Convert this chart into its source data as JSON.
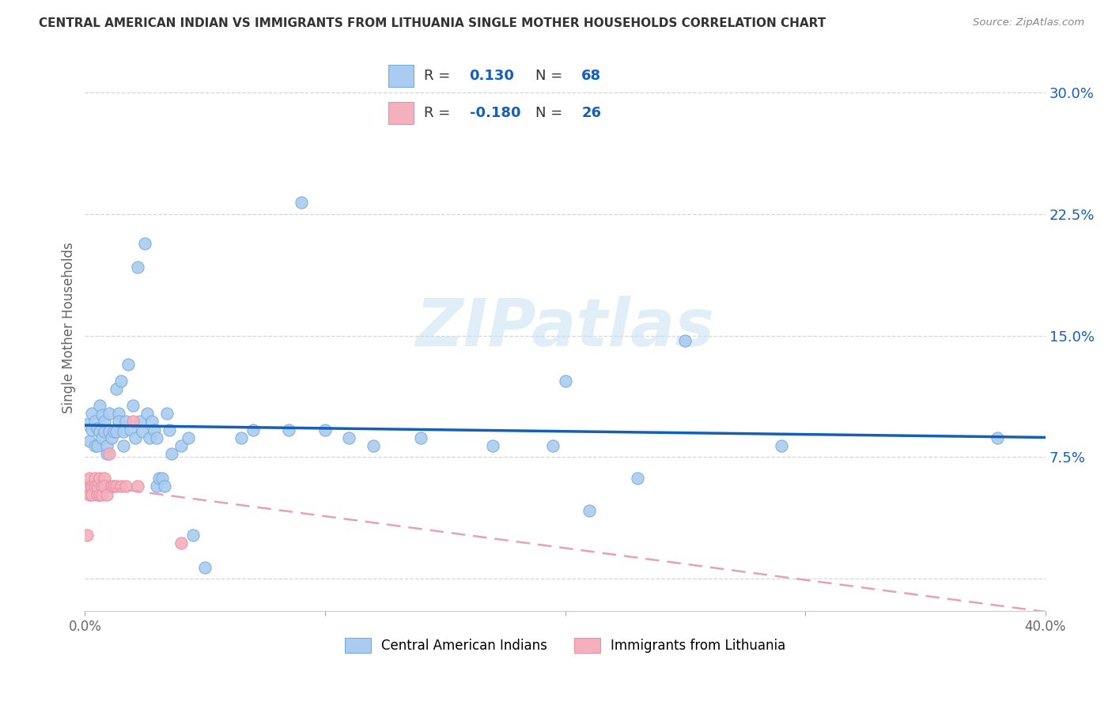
{
  "title": "CENTRAL AMERICAN INDIAN VS IMMIGRANTS FROM LITHUANIA SINGLE MOTHER HOUSEHOLDS CORRELATION CHART",
  "source": "Source: ZipAtlas.com",
  "ylabel": "Single Mother Households",
  "yticks": [
    0.0,
    0.075,
    0.15,
    0.225,
    0.3
  ],
  "ytick_labels": [
    "",
    "7.5%",
    "15.0%",
    "22.5%",
    "30.0%"
  ],
  "xtick_labels": [
    "0.0%",
    "",
    "",
    "",
    "40.0%"
  ],
  "xlim": [
    0.0,
    0.4
  ],
  "ylim": [
    -0.02,
    0.33
  ],
  "r_blue": 0.13,
  "n_blue": 68,
  "r_pink": -0.18,
  "n_pink": 26,
  "legend_label_blue": "Central American Indians",
  "legend_label_pink": "Immigrants from Lithuania",
  "watermark": "ZIPatlas",
  "scatter_blue": [
    [
      0.001,
      0.095
    ],
    [
      0.002,
      0.085
    ],
    [
      0.003,
      0.092
    ],
    [
      0.003,
      0.102
    ],
    [
      0.004,
      0.082
    ],
    [
      0.004,
      0.097
    ],
    [
      0.005,
      0.082
    ],
    [
      0.005,
      0.093
    ],
    [
      0.006,
      0.107
    ],
    [
      0.006,
      0.091
    ],
    [
      0.007,
      0.101
    ],
    [
      0.007,
      0.087
    ],
    [
      0.008,
      0.091
    ],
    [
      0.008,
      0.097
    ],
    [
      0.009,
      0.077
    ],
    [
      0.009,
      0.082
    ],
    [
      0.01,
      0.091
    ],
    [
      0.01,
      0.102
    ],
    [
      0.011,
      0.087
    ],
    [
      0.012,
      0.091
    ],
    [
      0.013,
      0.117
    ],
    [
      0.013,
      0.091
    ],
    [
      0.014,
      0.102
    ],
    [
      0.014,
      0.097
    ],
    [
      0.015,
      0.122
    ],
    [
      0.016,
      0.091
    ],
    [
      0.016,
      0.082
    ],
    [
      0.017,
      0.097
    ],
    [
      0.018,
      0.132
    ],
    [
      0.019,
      0.092
    ],
    [
      0.02,
      0.107
    ],
    [
      0.021,
      0.087
    ],
    [
      0.022,
      0.192
    ],
    [
      0.023,
      0.097
    ],
    [
      0.024,
      0.091
    ],
    [
      0.025,
      0.207
    ],
    [
      0.026,
      0.102
    ],
    [
      0.027,
      0.087
    ],
    [
      0.028,
      0.097
    ],
    [
      0.029,
      0.092
    ],
    [
      0.03,
      0.087
    ],
    [
      0.03,
      0.057
    ],
    [
      0.031,
      0.062
    ],
    [
      0.032,
      0.062
    ],
    [
      0.033,
      0.057
    ],
    [
      0.034,
      0.102
    ],
    [
      0.035,
      0.092
    ],
    [
      0.036,
      0.077
    ],
    [
      0.04,
      0.082
    ],
    [
      0.043,
      0.087
    ],
    [
      0.045,
      0.027
    ],
    [
      0.05,
      0.007
    ],
    [
      0.065,
      0.087
    ],
    [
      0.07,
      0.092
    ],
    [
      0.085,
      0.092
    ],
    [
      0.09,
      0.232
    ],
    [
      0.1,
      0.092
    ],
    [
      0.11,
      0.087
    ],
    [
      0.12,
      0.082
    ],
    [
      0.14,
      0.087
    ],
    [
      0.17,
      0.082
    ],
    [
      0.195,
      0.082
    ],
    [
      0.2,
      0.122
    ],
    [
      0.21,
      0.042
    ],
    [
      0.23,
      0.062
    ],
    [
      0.25,
      0.147
    ],
    [
      0.29,
      0.082
    ],
    [
      0.38,
      0.087
    ]
  ],
  "scatter_pink": [
    [
      0.001,
      0.057
    ],
    [
      0.002,
      0.052
    ],
    [
      0.002,
      0.062
    ],
    [
      0.003,
      0.057
    ],
    [
      0.003,
      0.052
    ],
    [
      0.004,
      0.062
    ],
    [
      0.004,
      0.057
    ],
    [
      0.005,
      0.052
    ],
    [
      0.005,
      0.057
    ],
    [
      0.006,
      0.062
    ],
    [
      0.006,
      0.052
    ],
    [
      0.007,
      0.057
    ],
    [
      0.007,
      0.052
    ],
    [
      0.008,
      0.062
    ],
    [
      0.008,
      0.057
    ],
    [
      0.009,
      0.052
    ],
    [
      0.01,
      0.077
    ],
    [
      0.011,
      0.057
    ],
    [
      0.012,
      0.057
    ],
    [
      0.013,
      0.057
    ],
    [
      0.015,
      0.057
    ],
    [
      0.017,
      0.057
    ],
    [
      0.02,
      0.097
    ],
    [
      0.022,
      0.057
    ],
    [
      0.04,
      0.022
    ],
    [
      0.001,
      0.027
    ]
  ],
  "dot_size": 120,
  "blue_color": "#aaccf0",
  "pink_color": "#f5b0be",
  "blue_scatter_edge": "#7aacde",
  "pink_scatter_edge": "#e890a0",
  "blue_line_color": "#1460b8",
  "pink_line_color": "#e8a0b8",
  "text_color": "#1460b8",
  "legend_text_dark": "#333333",
  "background_color": "#ffffff",
  "grid_color": "#cccccc",
  "title_color": "#333333",
  "source_color": "#888888",
  "ylabel_color": "#666666",
  "xtick_color": "#666666"
}
